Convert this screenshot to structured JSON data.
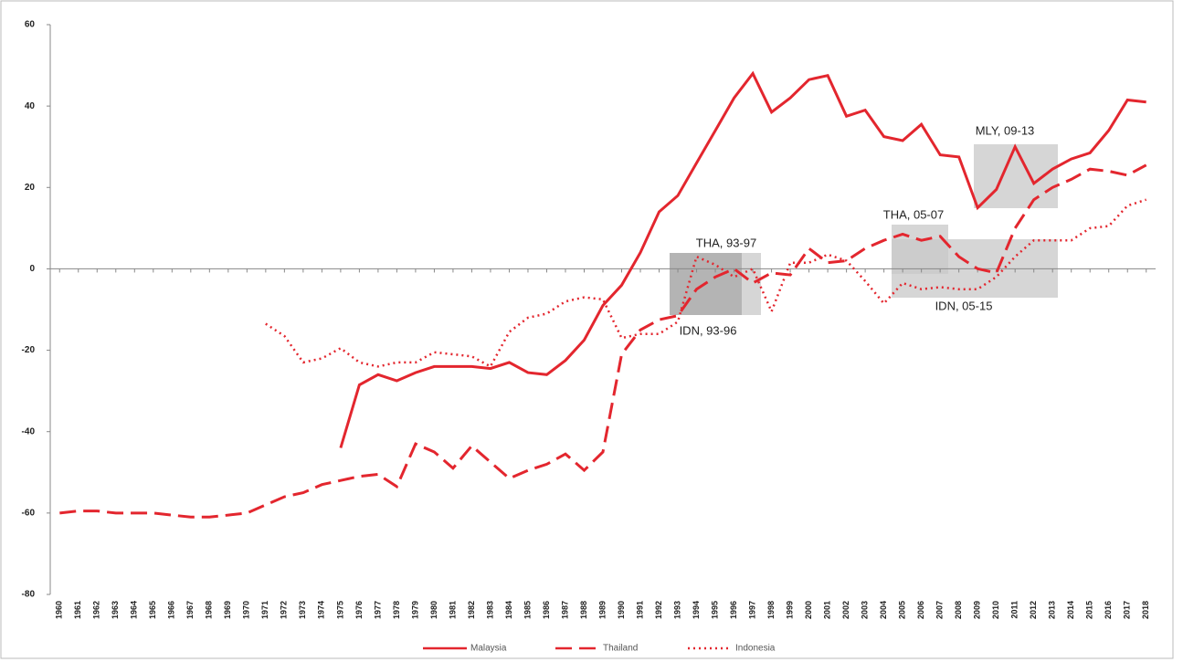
{
  "chart_data": {
    "type": "line",
    "categories": [
      "1960",
      "1961",
      "1962",
      "1963",
      "1964",
      "1965",
      "1966",
      "1967",
      "1968",
      "1969",
      "1970",
      "1971",
      "1972",
      "1973",
      "1974",
      "1975",
      "1976",
      "1977",
      "1978",
      "1979",
      "1980",
      "1981",
      "1982",
      "1983",
      "1984",
      "1985",
      "1986",
      "1987",
      "1988",
      "1989",
      "1990",
      "1991",
      "1992",
      "1993",
      "1994",
      "1995",
      "1996",
      "1997",
      "1998",
      "1999",
      "2000",
      "2001",
      "2002",
      "2003",
      "2004",
      "2005",
      "2006",
      "2007",
      "2008",
      "2009",
      "2010",
      "2011",
      "2012",
      "2013",
      "2014",
      "2015",
      "2016",
      "2017",
      "2018"
    ],
    "series": [
      {
        "name": "Malaysia",
        "color": "#e3262e",
        "dash": "solid",
        "values": [
          null,
          null,
          null,
          null,
          null,
          null,
          null,
          null,
          null,
          null,
          null,
          null,
          null,
          null,
          null,
          -44,
          -28.5,
          -26,
          -27.5,
          -25.5,
          -24,
          -24,
          -24,
          -24.5,
          -23,
          -25.5,
          -26,
          -22.5,
          -17.5,
          -9,
          -4,
          4,
          14,
          18,
          26,
          34,
          42,
          48,
          38.5,
          42,
          46.5,
          47.5,
          37.5,
          39,
          32.5,
          31.5,
          35.5,
          28,
          27.5,
          15,
          19.5,
          30,
          21,
          24.5,
          27,
          28.5,
          34,
          41.5,
          41
        ]
      },
      {
        "name": "Thailand",
        "color": "#e3262e",
        "dash": "dash",
        "values": [
          -60,
          -59.5,
          -59.5,
          -60,
          -60,
          -60,
          -60.5,
          -61,
          -61,
          -60.5,
          -60,
          -58,
          -56,
          -55,
          -53,
          -52,
          -51,
          -50.5,
          -53.5,
          -43,
          -45,
          -49,
          -43.5,
          -47.5,
          -51.5,
          -49.5,
          -48,
          -45.5,
          -49.5,
          -45,
          -21,
          -15,
          -12.5,
          -11.5,
          -5,
          -2,
          0,
          -3.5,
          -1,
          -1.5,
          5,
          1.5,
          2,
          5,
          7,
          8.5,
          7,
          8,
          3,
          0,
          -1,
          10,
          17,
          20,
          22,
          24.5,
          24,
          23,
          25.5
        ]
      },
      {
        "name": "Indonesia",
        "color": "#e3262e",
        "dash": "dot",
        "values": [
          null,
          null,
          null,
          null,
          null,
          null,
          null,
          null,
          null,
          null,
          null,
          -13.5,
          -16.5,
          -23,
          -22,
          -19.5,
          -23,
          -24,
          -23,
          -23,
          -20.5,
          -21,
          -21.5,
          -24,
          -15.5,
          -12,
          -11,
          -8,
          -7,
          -7.5,
          -17,
          -16,
          -16,
          -13,
          3,
          1,
          -2,
          0,
          -10.5,
          1.5,
          1.5,
          3.5,
          2,
          -3,
          -8.5,
          -3.5,
          -5,
          -4.5,
          -5,
          -5,
          -2,
          3,
          7,
          7,
          7,
          10,
          10.5,
          15.5,
          17
        ]
      }
    ],
    "ylim": [
      -80,
      60
    ],
    "yticks": [
      -80,
      -60,
      -40,
      -20,
      0,
      20,
      40,
      60
    ],
    "annotations": [
      "THA, 93-97",
      "IDN, 93-96",
      "THA, 05-07",
      "IDN, 05-15",
      "MLY, 09-13"
    ],
    "legend": "bottom"
  }
}
